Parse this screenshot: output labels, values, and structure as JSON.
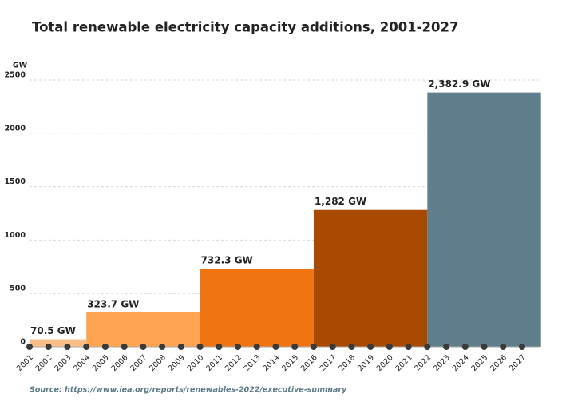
{
  "chart_data": {
    "type": "bar",
    "title": "Total renewable electricity capacity additions, 2001-2027",
    "y_label": "GW",
    "source": "Source: https://www.iea.org/reports/renewables-2022/executive-summary",
    "start": [
      2001,
      2004,
      2010,
      2016,
      2022
    ],
    "end": [
      2004,
      2010,
      2016,
      2022,
      2028
    ],
    "values": [
      70.5,
      323.7,
      732.3,
      1282,
      2382.9
    ],
    "value_labels": [
      "70.5 GW",
      "323.7 GW",
      "732.3 GW",
      "1,282 GW",
      "2,382.9 GW"
    ],
    "colors": [
      "#fdbf8a",
      "#fea452",
      "#f07512",
      "#a84a02",
      "#5e7f8b"
    ],
    "xlim": [
      2001,
      2028
    ],
    "xticks": [
      2001,
      2002,
      2003,
      2004,
      2005,
      2006,
      2007,
      2008,
      2009,
      2010,
      2011,
      2012,
      2013,
      2014,
      2015,
      2016,
      2017,
      2018,
      2019,
      2020,
      2021,
      2022,
      2023,
      2024,
      2025,
      2026,
      2027
    ],
    "ylim": [
      0,
      2500
    ],
    "yticks": [
      0,
      500,
      1000,
      1500,
      2000,
      2500
    ],
    "grid": true
  }
}
